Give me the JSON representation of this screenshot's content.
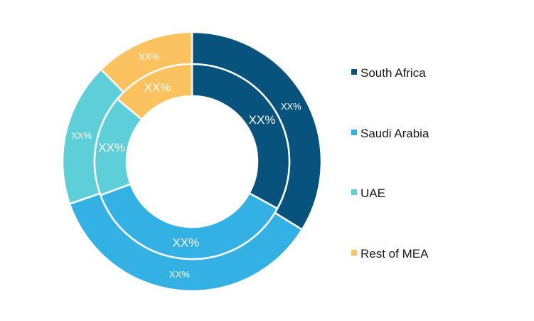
{
  "chart_data": {
    "type": "pie",
    "style": "double-donut",
    "categories": [
      "South Africa",
      "Saudi Arabia",
      "UAE",
      "Rest of MEA"
    ],
    "colors": [
      "#08527e",
      "#34b1e4",
      "#5ecfd8",
      "#fcc260"
    ],
    "series": [
      {
        "ring": "outer",
        "values": [
          33.8,
          35.9,
          17.9,
          12.4
        ],
        "labels": [
          "XX%",
          "XX%",
          "XX%",
          "XX%"
        ]
      },
      {
        "ring": "inner",
        "values": [
          33.0,
          36.4,
          16.7,
          13.9
        ],
        "labels": [
          "XX%",
          "XX%",
          "XX%",
          "XX%"
        ]
      }
    ],
    "legend": {
      "position": "right",
      "entries": [
        "South Africa",
        "Saudi Arabia",
        "UAE",
        "Rest of MEA"
      ]
    }
  }
}
